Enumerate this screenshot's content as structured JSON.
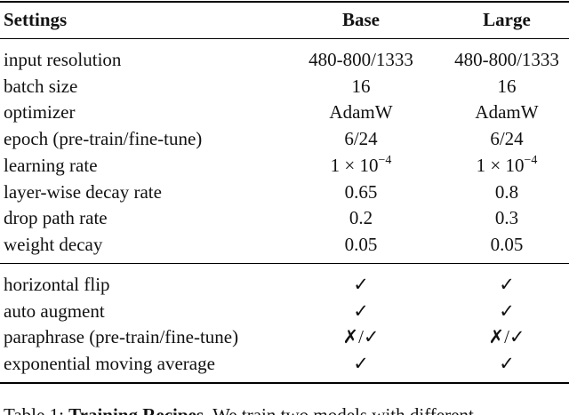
{
  "table": {
    "header": [
      "Settings",
      "Base",
      "Large"
    ],
    "groups": [
      [
        [
          "input resolution",
          "480-800/1333",
          "480-800/1333"
        ],
        [
          "batch size",
          "16",
          "16"
        ],
        [
          "optimizer",
          "AdamW",
          "AdamW"
        ],
        [
          "epoch (pre-train/fine-tune)",
          "6/24",
          "6/24"
        ],
        [
          "learning rate",
          {
            "base": "1 × 10",
            "exp": "−4"
          },
          {
            "base": "1 × 10",
            "exp": "−4"
          }
        ],
        [
          "layer-wise decay rate",
          "0.65",
          "0.8"
        ],
        [
          "drop path rate",
          "0.2",
          "0.3"
        ],
        [
          "weight decay",
          "0.05",
          "0.05"
        ]
      ],
      [
        [
          "horizontal flip",
          "✓",
          "✓"
        ],
        [
          "auto augment",
          "✓",
          "✓"
        ],
        [
          "paraphrase (pre-train/fine-tune)",
          "✗/✓",
          "✗/✓"
        ],
        [
          "exponential moving average",
          "✓",
          "✓"
        ]
      ]
    ]
  },
  "caption": {
    "label": "Table 1:",
    "title": "Training Recipes.",
    "text": "We train two models with different"
  }
}
